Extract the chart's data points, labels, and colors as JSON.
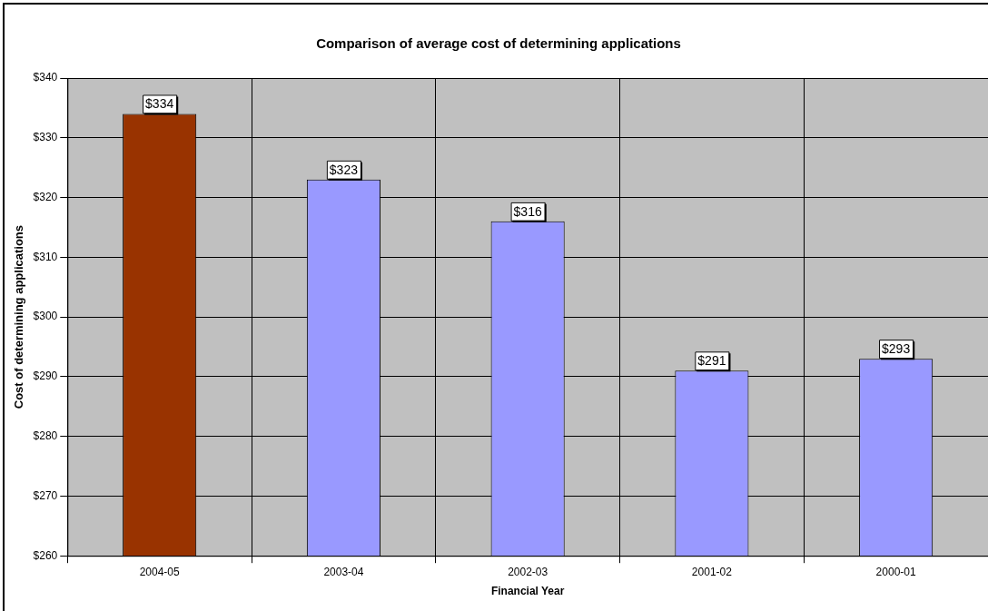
{
  "chart_data": {
    "type": "bar",
    "title": "Comparison of average cost of determining applications",
    "xlabel": "Financial Year",
    "ylabel": "Cost of determining applications",
    "categories": [
      "2004-05",
      "2003-04",
      "2002-03",
      "2001-02",
      "2000-01"
    ],
    "values": [
      334,
      323,
      316,
      291,
      293
    ],
    "colors": [
      "#993300",
      "#9999ff",
      "#9999ff",
      "#9999ff",
      "#9999ff"
    ],
    "value_labels": [
      "$334",
      "$323",
      "$316",
      "$291",
      "$293"
    ],
    "ylim": [
      260,
      340
    ],
    "yticks": [
      {
        "value": 260,
        "label": "$260"
      },
      {
        "value": 270,
        "label": "$270"
      },
      {
        "value": 280,
        "label": "$280"
      },
      {
        "value": 290,
        "label": "$290"
      },
      {
        "value": 300,
        "label": "$300"
      },
      {
        "value": 310,
        "label": "$310"
      },
      {
        "value": 320,
        "label": "$320"
      },
      {
        "value": 330,
        "label": "$330"
      },
      {
        "value": 340,
        "label": "$340"
      }
    ],
    "grid": true,
    "legend": false
  }
}
